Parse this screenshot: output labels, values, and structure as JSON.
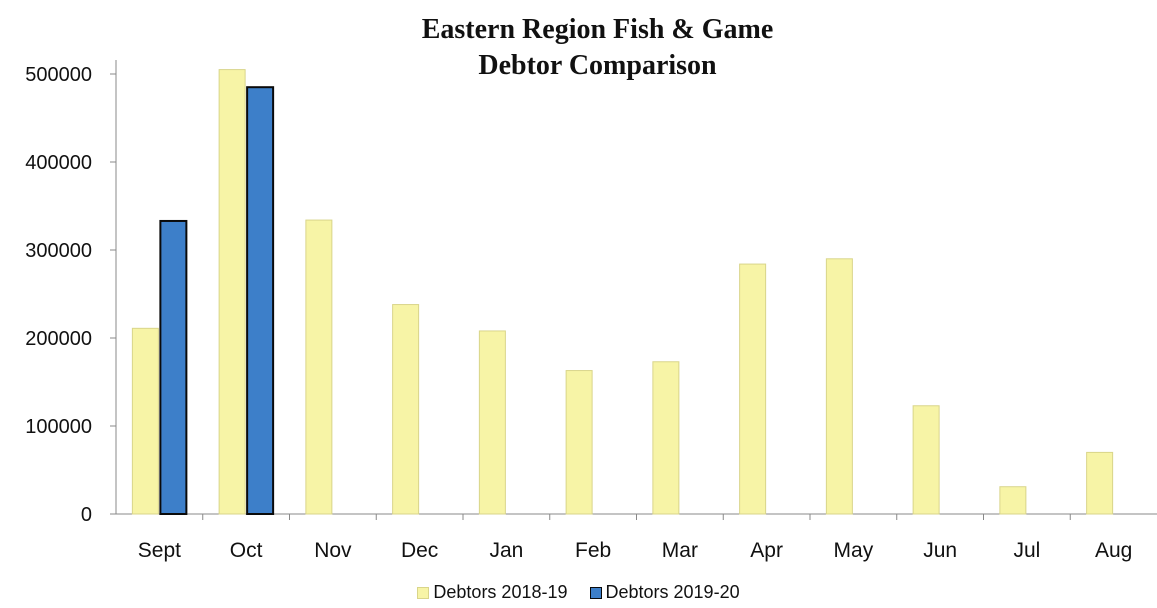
{
  "chart_data": {
    "type": "bar",
    "title_lines": [
      "Eastern Region Fish & Game",
      "Debtor Comparison"
    ],
    "categories": [
      "Sept",
      "Oct",
      "Nov",
      "Dec",
      "Jan",
      "Feb",
      "Mar",
      "Apr",
      "May",
      "Jun",
      "Jul",
      "Aug"
    ],
    "series": [
      {
        "name": "Debtors 2018-19",
        "color": "#f7f4a6",
        "stroke": "#d9d58a",
        "values": [
          211000,
          505000,
          334000,
          238000,
          208000,
          163000,
          173000,
          284000,
          290000,
          123000,
          31000,
          70000
        ]
      },
      {
        "name": "Debtors 2019-20",
        "color": "#3d7fc9",
        "stroke": "#0a0a0a",
        "values": [
          333000,
          485000,
          null,
          null,
          null,
          null,
          null,
          null,
          null,
          null,
          null,
          null
        ]
      }
    ],
    "yticks": [
      "0",
      "100000",
      "200000",
      "300000",
      "400000",
      "500000"
    ],
    "ylim": [
      0,
      500000
    ],
    "legend_position": "bottom",
    "grid": false
  }
}
